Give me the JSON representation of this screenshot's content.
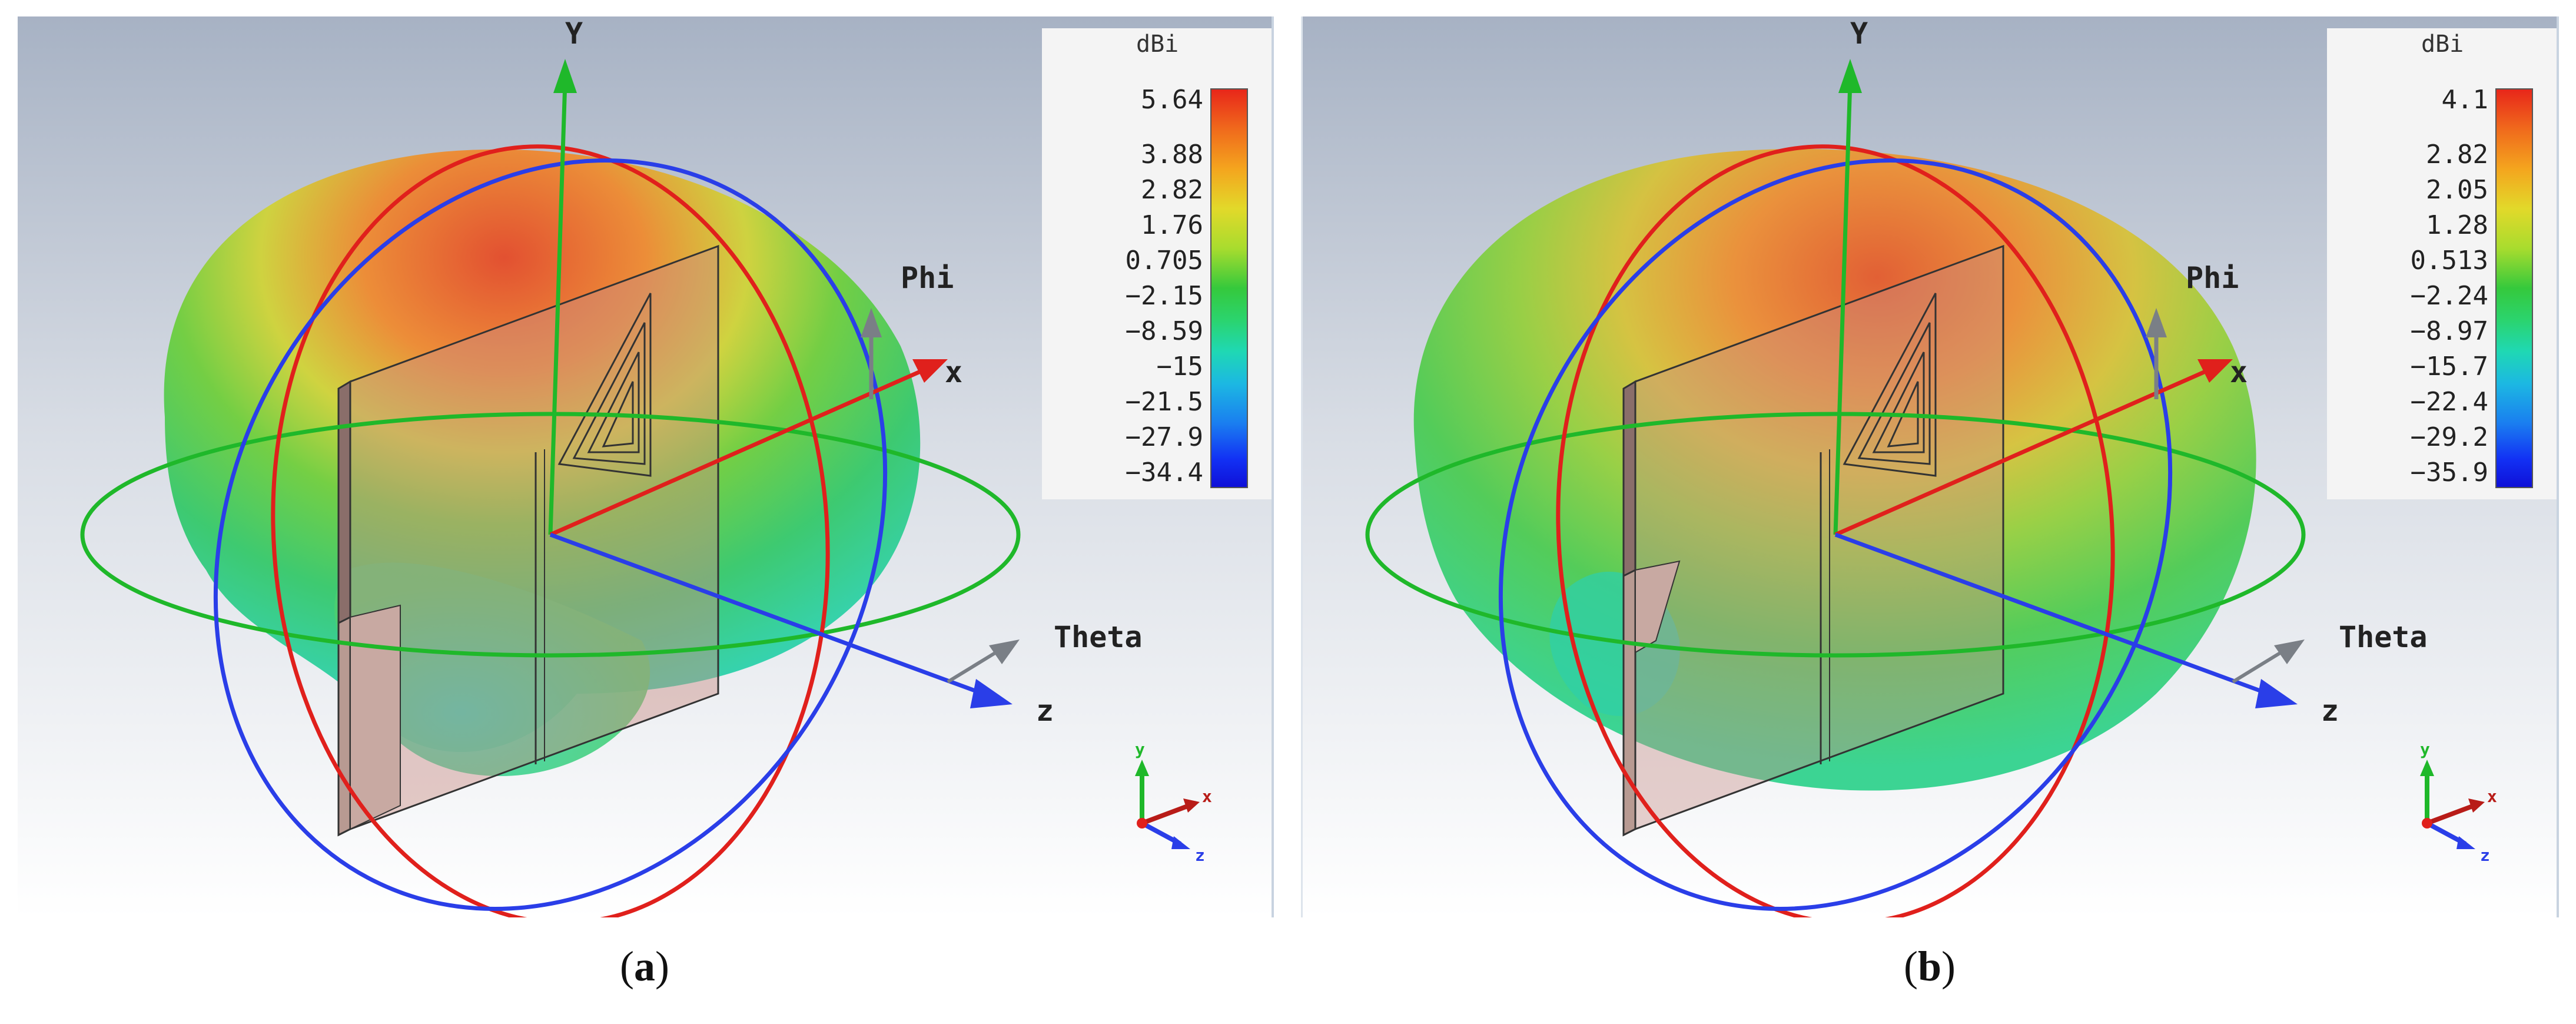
{
  "panels": [
    {
      "id": "a",
      "caption_letter": "a",
      "colorbar": {
        "unit": "dBi",
        "labels": [
          "5.64",
          "3.88",
          "2.82",
          "1.76",
          "0.705",
          "−2.15",
          "−8.59",
          "−15",
          "−21.5",
          "−27.9",
          "−34.4"
        ]
      },
      "axes": {
        "y": "Y",
        "x": "x",
        "z": "z",
        "phi": "Phi",
        "theta": "Theta"
      },
      "mini_axes": {
        "y": "y",
        "x": "x",
        "z": "z"
      }
    },
    {
      "id": "b",
      "caption_letter": "b",
      "colorbar": {
        "unit": "dBi",
        "labels": [
          "4.1",
          "2.82",
          "2.05",
          "1.28",
          "0.513",
          "−2.24",
          "−8.97",
          "−15.7",
          "−22.4",
          "−29.2",
          "−35.9"
        ]
      },
      "axes": {
        "y": "Y",
        "x": "x",
        "z": "z",
        "phi": "Phi",
        "theta": "Theta"
      },
      "mini_axes": {
        "y": "y",
        "x": "x",
        "z": "z"
      }
    }
  ],
  "colors": {
    "x_axis": "#e0201c",
    "y_axis": "#1fb82a",
    "z_axis": "#2a3ee8",
    "phi_theta_arrow": "#7a7f86"
  }
}
